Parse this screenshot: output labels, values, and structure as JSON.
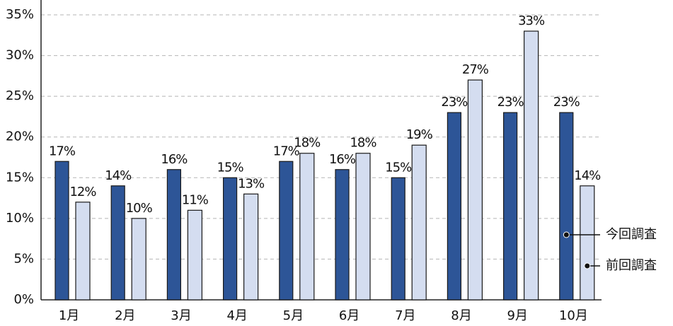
{
  "chart_data": {
    "type": "bar",
    "categories": [
      "1月",
      "2月",
      "3月",
      "4月",
      "5月",
      "6月",
      "7月",
      "8月",
      "9月",
      "10月"
    ],
    "series": [
      {
        "name": "今回調査",
        "color": "#2d5597",
        "values": [
          17,
          14,
          16,
          15,
          17,
          16,
          15,
          23,
          23,
          23
        ],
        "value_labels": [
          "17%",
          "14%",
          "16%",
          "15%",
          "17%",
          "16%",
          "15%",
          "23%",
          "23%",
          "23%"
        ]
      },
      {
        "name": "前回調査",
        "color": "#d4ddf0",
        "values": [
          12,
          10,
          11,
          13,
          18,
          18,
          19,
          27,
          33,
          14
        ],
        "value_labels": [
          "12%",
          "10%",
          "11%",
          "13%",
          "18%",
          "18%",
          "19%",
          "27%",
          "33%",
          "14%"
        ]
      }
    ],
    "ylim": [
      0,
      35
    ],
    "yticks": [
      {
        "value": 0,
        "label": "0%"
      },
      {
        "value": 5,
        "label": "5%"
      },
      {
        "value": 10,
        "label": "10%"
      },
      {
        "value": 15,
        "label": "15%"
      },
      {
        "value": 20,
        "label": "20%"
      },
      {
        "value": 25,
        "label": "25%"
      },
      {
        "value": 30,
        "label": "30%"
      },
      {
        "value": 35,
        "label": "35%"
      }
    ],
    "grid": true
  }
}
